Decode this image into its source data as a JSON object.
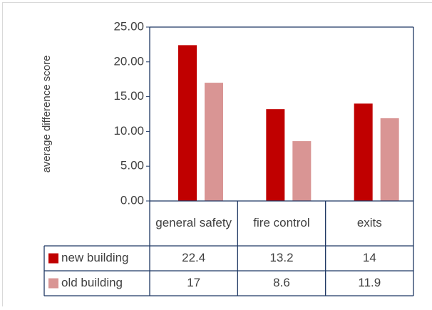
{
  "chart_data": {
    "type": "bar",
    "y_label": "average difference score",
    "categories": [
      "general safety",
      "fire control",
      "exits"
    ],
    "series": [
      {
        "name": "new building",
        "color": "#c00000",
        "values": [
          22.4,
          13.2,
          14
        ]
      },
      {
        "name": "old building",
        "color": "#d99594",
        "values": [
          17,
          8.6,
          11.9
        ]
      }
    ],
    "ylim": [
      0,
      25
    ],
    "yticks": [
      {
        "value": 0,
        "label": "0.00"
      },
      {
        "value": 5,
        "label": "5.00"
      },
      {
        "value": 10,
        "label": "10.00"
      },
      {
        "value": 15,
        "label": "15.00"
      },
      {
        "value": 20,
        "label": "20.00"
      },
      {
        "value": 25,
        "label": "25.00"
      }
    ],
    "data_table": true
  }
}
